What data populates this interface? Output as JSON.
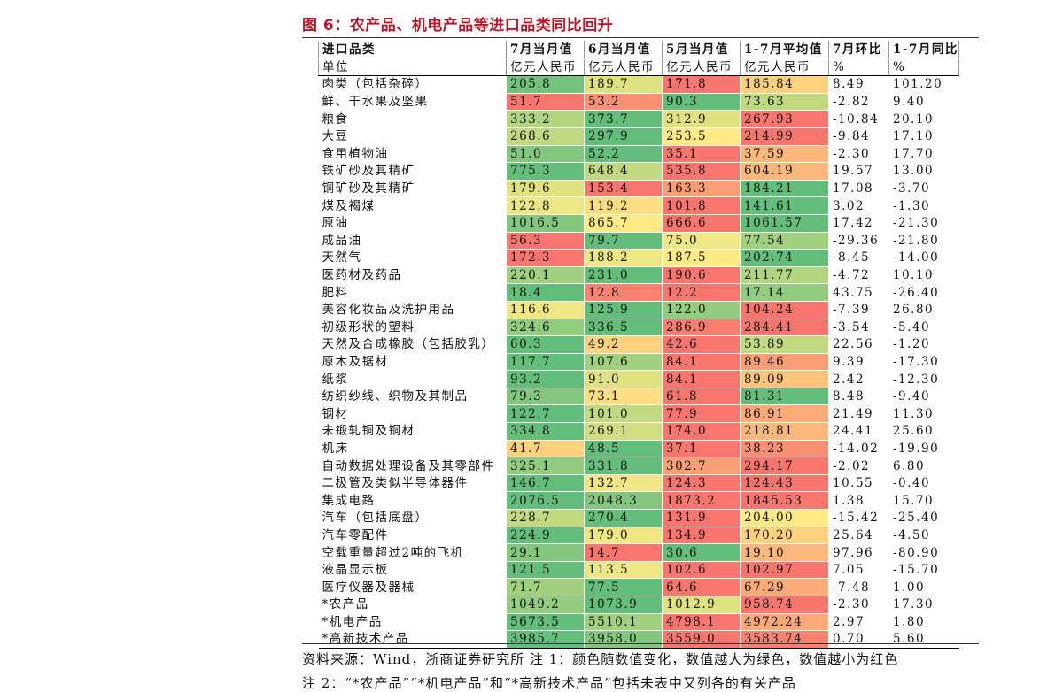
{
  "figure": {
    "title": "图 6：农产品、机电产品等进口品类同比回升",
    "source_note": "资料来源：Wind，浙商证券研究所    注 1：颜色随数值变化，数值越大为绿色，数值越小为红色",
    "note2": "注 2：“*农产品”“*机电产品”和“*高新技术产品”包括未表中又列各的有关产品"
  },
  "colors": {
    "title": "#b8182a",
    "high": "#63be7b",
    "mid": "#ffeb84",
    "low": "#f8696b"
  },
  "table": {
    "headers": [
      "进口品类",
      "7月当月值",
      "6月当月值",
      "5月当月值",
      "1-7月平均值",
      "7月环比",
      "1-7月同比"
    ],
    "units": [
      "单位",
      "亿元人民币",
      "亿元人民币",
      "亿元人民币",
      "亿元人民币",
      "%",
      "%"
    ],
    "rows": [
      [
        "肉类（包括杂碎）",
        "205.8",
        "189.7",
        "171.8",
        "185.84",
        "8.49",
        "101.20"
      ],
      [
        "鲜、干水果及坚果",
        "51.7",
        "53.2",
        "90.3",
        "73.63",
        "-2.82",
        "9.40"
      ],
      [
        "粮食",
        "333.2",
        "373.7",
        "312.9",
        "267.93",
        "-10.84",
        "20.10"
      ],
      [
        "大豆",
        "268.6",
        "297.9",
        "253.5",
        "214.99",
        "-9.84",
        "17.10"
      ],
      [
        "食用植物油",
        "51.0",
        "52.2",
        "35.1",
        "37.59",
        "-2.30",
        "17.70"
      ],
      [
        "铁矿砂及其精矿",
        "775.3",
        "648.4",
        "535.8",
        "604.19",
        "19.57",
        "13.00"
      ],
      [
        "铜矿砂及其精矿",
        "179.6",
        "153.4",
        "163.3",
        "184.21",
        "17.08",
        "-3.70"
      ],
      [
        "煤及褐煤",
        "122.8",
        "119.2",
        "101.8",
        "141.61",
        "3.02",
        "-1.30"
      ],
      [
        "原油",
        "1016.5",
        "865.7",
        "666.6",
        "1061.57",
        "17.42",
        "-21.30"
      ],
      [
        "成品油",
        "56.3",
        "79.7",
        "75.0",
        "77.54",
        "-29.36",
        "-21.80"
      ],
      [
        "天然气",
        "172.3",
        "188.2",
        "187.5",
        "202.74",
        "-8.45",
        "-14.00"
      ],
      [
        "医药材及药品",
        "220.1",
        "231.0",
        "190.6",
        "211.77",
        "-4.72",
        "10.10"
      ],
      [
        "肥料",
        "18.4",
        "12.8",
        "12.2",
        "17.14",
        "43.75",
        "-26.40"
      ],
      [
        "美容化妆品及洗护用品",
        "116.6",
        "125.9",
        "122.0",
        "104.24",
        "-7.39",
        "26.80"
      ],
      [
        "初级形状的塑料",
        "324.6",
        "336.5",
        "286.9",
        "284.41",
        "-3.54",
        "-5.40"
      ],
      [
        "天然及合成橡胶（包括胶乳）",
        "60.3",
        "49.2",
        "42.6",
        "53.89",
        "22.56",
        "-1.20"
      ],
      [
        "原木及锯材",
        "117.7",
        "107.6",
        "84.1",
        "89.46",
        "9.39",
        "-17.30"
      ],
      [
        "纸浆",
        "93.2",
        "91.0",
        "84.1",
        "89.09",
        "2.42",
        "-12.30"
      ],
      [
        "纺织纱线、织物及其制品",
        "79.3",
        "73.1",
        "61.8",
        "81.31",
        "8.48",
        "-9.40"
      ],
      [
        "钢材",
        "122.7",
        "101.0",
        "77.9",
        "86.91",
        "21.49",
        "11.30"
      ],
      [
        "未锻轧铜及铜材",
        "334.8",
        "269.1",
        "174.0",
        "218.81",
        "24.41",
        "25.60"
      ],
      [
        "机床",
        "41.7",
        "48.5",
        "37.1",
        "38.23",
        "-14.02",
        "-19.90"
      ],
      [
        "自动数据处理设备及其零部件",
        "325.1",
        "331.8",
        "302.7",
        "294.17",
        "-2.02",
        "6.80"
      ],
      [
        "二极管及类似半导体器件",
        "146.7",
        "132.7",
        "124.3",
        "124.43",
        "10.55",
        "-0.40"
      ],
      [
        "集成电路",
        "2076.5",
        "2048.3",
        "1873.2",
        "1845.53",
        "1.38",
        "15.70"
      ],
      [
        "汽车（包括底盘）",
        "228.7",
        "270.4",
        "131.9",
        "204.00",
        "-15.42",
        "-25.40"
      ],
      [
        "汽车零配件",
        "224.9",
        "179.0",
        "134.9",
        "170.20",
        "25.64",
        "-4.50"
      ],
      [
        "空载重量超过2吨的飞机",
        "29.1",
        "14.7",
        "30.6",
        "19.10",
        "97.96",
        "-80.90"
      ],
      [
        "液晶显示板",
        "121.5",
        "113.5",
        "102.6",
        "102.97",
        "7.05",
        "-15.70"
      ],
      [
        "医疗仪器及器械",
        "71.7",
        "77.5",
        "64.6",
        "67.29",
        "-7.48",
        "1.00"
      ],
      [
        "*农产品",
        "1049.2",
        "1073.9",
        "1012.9",
        "958.74",
        "-2.30",
        "17.30"
      ],
      [
        "*机电产品",
        "5673.5",
        "5510.1",
        "4798.1",
        "4972.24",
        "2.97",
        "1.80"
      ],
      [
        "*高新技术产品",
        "3985.7",
        "3958.0",
        "3559.0",
        "3583.74",
        "0.70",
        "5.60"
      ]
    ],
    "heat_levels": [
      [
        0.95,
        0.6,
        0.05,
        0.4
      ],
      [
        0.05,
        0.15,
        1.0,
        0.7
      ],
      [
        0.75,
        1.0,
        0.6,
        0.05
      ],
      [
        0.7,
        1.0,
        0.5,
        0.05
      ],
      [
        0.9,
        1.0,
        0.05,
        0.3
      ],
      [
        1.0,
        0.7,
        0.05,
        0.3
      ],
      [
        0.6,
        0.05,
        0.2,
        1.0
      ],
      [
        0.55,
        0.45,
        0.05,
        1.0
      ],
      [
        0.9,
        0.5,
        0.05,
        1.0
      ],
      [
        0.05,
        1.0,
        0.55,
        0.8
      ],
      [
        0.05,
        0.55,
        0.5,
        1.0
      ],
      [
        0.8,
        1.0,
        0.05,
        0.75
      ],
      [
        1.0,
        0.1,
        0.05,
        0.85
      ],
      [
        0.55,
        1.0,
        0.85,
        0.05
      ],
      [
        0.85,
        1.0,
        0.08,
        0.05
      ],
      [
        1.0,
        0.4,
        0.05,
        0.7
      ],
      [
        1.0,
        0.8,
        0.05,
        0.2
      ],
      [
        1.0,
        0.6,
        0.05,
        0.35
      ],
      [
        0.9,
        0.45,
        0.05,
        1.0
      ],
      [
        1.0,
        0.7,
        0.05,
        0.25
      ],
      [
        1.0,
        0.65,
        0.05,
        0.3
      ],
      [
        0.4,
        1.0,
        0.05,
        0.15
      ],
      [
        0.85,
        1.0,
        0.2,
        0.05
      ],
      [
        1.0,
        0.55,
        0.05,
        0.05
      ],
      [
        1.0,
        0.9,
        0.05,
        0.05
      ],
      [
        0.7,
        1.0,
        0.05,
        0.5
      ],
      [
        1.0,
        0.55,
        0.05,
        0.4
      ],
      [
        0.9,
        0.05,
        1.0,
        0.3
      ],
      [
        1.0,
        0.55,
        0.05,
        0.05
      ],
      [
        0.8,
        1.0,
        0.05,
        0.25
      ],
      [
        0.85,
        1.0,
        0.6,
        0.05
      ],
      [
        1.0,
        0.8,
        0.05,
        0.25
      ],
      [
        1.0,
        0.9,
        0.05,
        0.1
      ]
    ]
  }
}
